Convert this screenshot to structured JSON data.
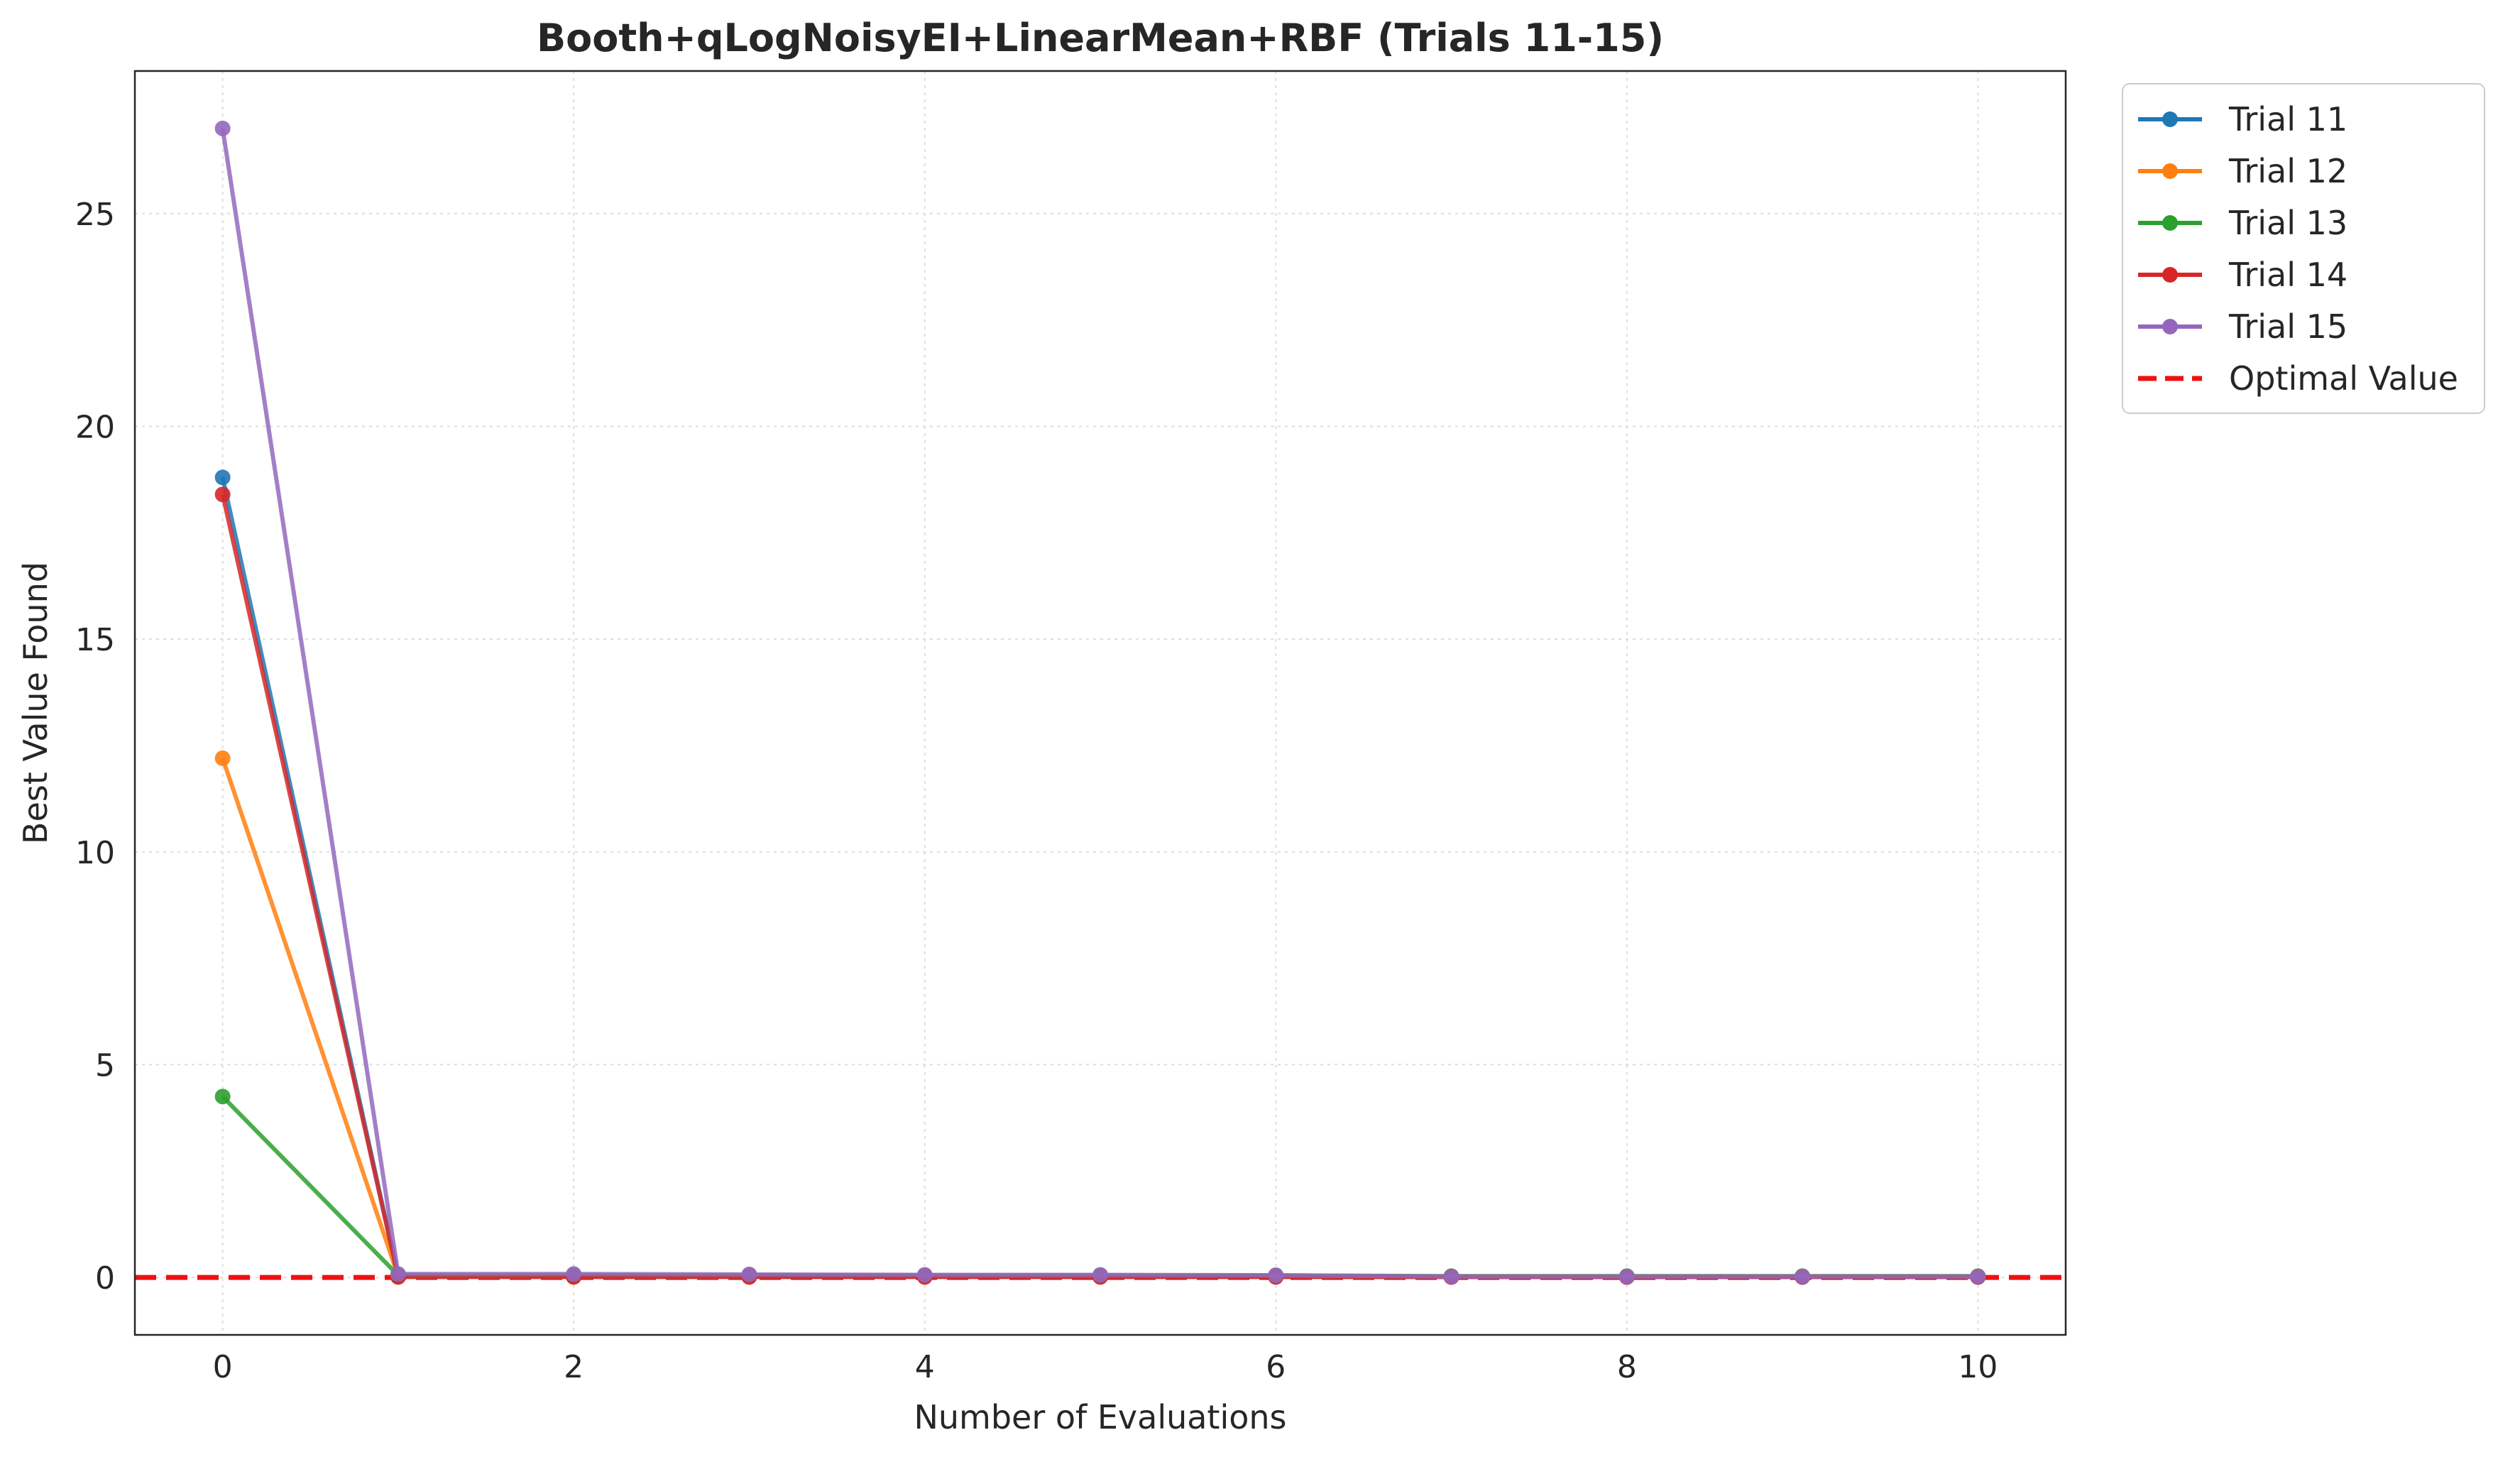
{
  "chart_data": {
    "type": "line",
    "title": "Booth+qLogNoisyEI+LinearMean+RBF (Trials 11-15)",
    "xlabel": "Number of Evaluations",
    "ylabel": "Best Value Found",
    "xlim": [
      -0.5,
      10.5
    ],
    "ylim": [
      -1.35,
      28.35
    ],
    "xticks": [
      0,
      2,
      4,
      6,
      8,
      10
    ],
    "yticks": [
      0,
      5,
      10,
      15,
      20,
      25
    ],
    "grid": true,
    "legend_position": "outside-top-right",
    "x": [
      0,
      1,
      2,
      3,
      4,
      5,
      6,
      7,
      8,
      9,
      10
    ],
    "series": [
      {
        "name": "Trial 11",
        "color": "#1f77b4",
        "values": [
          18.8,
          0.02,
          0.02,
          0.02,
          0.02,
          0.02,
          0.02,
          0.01,
          0.01,
          0.01,
          0.01
        ]
      },
      {
        "name": "Trial 12",
        "color": "#ff7f0e",
        "values": [
          12.2,
          0.03,
          0.03,
          0.03,
          0.03,
          0.03,
          0.03,
          0.02,
          0.02,
          0.02,
          0.02
        ]
      },
      {
        "name": "Trial 13",
        "color": "#2ca02c",
        "values": [
          4.25,
          0.05,
          0.05,
          0.05,
          0.05,
          0.05,
          0.05,
          0.03,
          0.03,
          0.03,
          0.03
        ]
      },
      {
        "name": "Trial 14",
        "color": "#d62728",
        "values": [
          18.4,
          0.01,
          0.01,
          0.01,
          0.01,
          0.01,
          0.01,
          0.01,
          0.01,
          0.01,
          0.01
        ]
      },
      {
        "name": "Trial 15",
        "color": "#9467bd",
        "values": [
          27.0,
          0.08,
          0.08,
          0.07,
          0.06,
          0.06,
          0.05,
          0.02,
          0.02,
          0.02,
          0.02
        ]
      }
    ],
    "reference_line": {
      "name": "Optimal Value",
      "value": 0,
      "color": "#ee1111",
      "style": "dashed"
    }
  }
}
